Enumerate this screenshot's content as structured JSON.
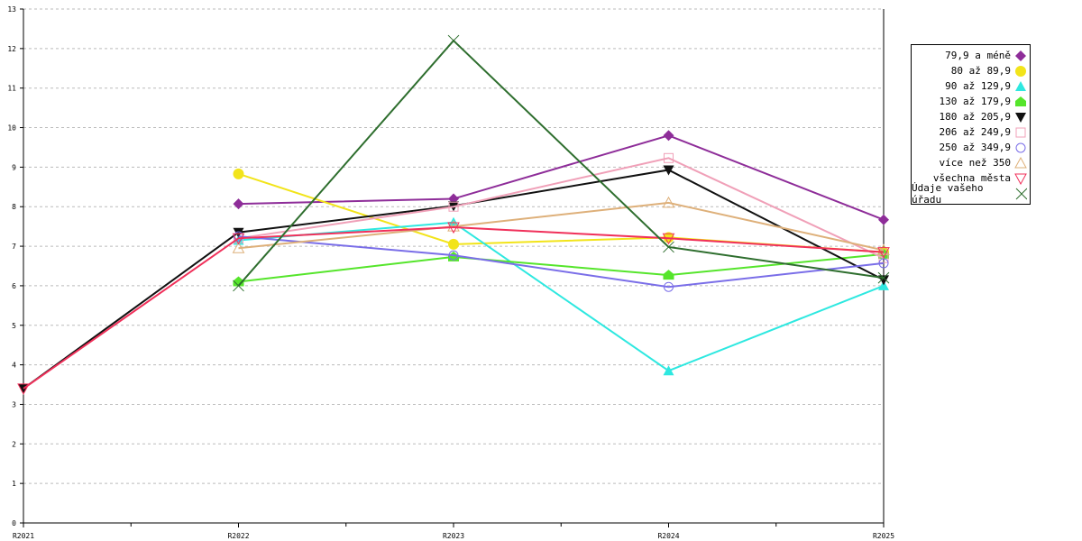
{
  "chart_data": {
    "type": "line",
    "title": "",
    "xlabel": "",
    "ylabel": "",
    "categories": [
      "R2021",
      "R2022",
      "R2023",
      "R2024",
      "R2025"
    ],
    "ylim": [
      0,
      13
    ],
    "yticks": [
      "0",
      "1",
      "2",
      "3",
      "4",
      "5",
      "6",
      "7",
      "8",
      "9",
      "10",
      "11",
      "12",
      "13"
    ],
    "grid": "horizontal dashed",
    "legend_position": "right",
    "series": [
      {
        "name": "79,9 a méně",
        "color": "#8e2d99",
        "marker": "diamond",
        "values": [
          null,
          8.07,
          8.2,
          9.8,
          7.67
        ]
      },
      {
        "name": "80 až 89,9",
        "color": "#f2e41a",
        "marker": "circle",
        "values": [
          null,
          8.83,
          7.05,
          7.22,
          6.85
        ]
      },
      {
        "name": "90 až 129,9",
        "color": "#2ee8e0",
        "marker": "triangle",
        "values": [
          null,
          7.15,
          7.6,
          3.85,
          6.0
        ]
      },
      {
        "name": "130 až 179,9",
        "color": "#55e52b",
        "marker": "pentagon",
        "values": [
          null,
          6.1,
          6.73,
          6.27,
          6.8
        ]
      },
      {
        "name": "180 až 205,9",
        "color": "#111111",
        "marker": "triangle-down",
        "values": [
          3.4,
          7.35,
          8.02,
          8.93,
          6.15
        ]
      },
      {
        "name": "206 až 249,9",
        "color": "#f0a0b8",
        "marker": "square-open",
        "values": [
          null,
          7.2,
          8.0,
          9.23,
          6.7
        ]
      },
      {
        "name": "250 až 349,9",
        "color": "#7a6ee8",
        "marker": "circle-open",
        "values": [
          null,
          7.25,
          6.77,
          5.97,
          6.57
        ]
      },
      {
        "name": "více než 350",
        "color": "#deb07a",
        "marker": "triangle-open",
        "values": [
          null,
          6.95,
          7.5,
          8.1,
          6.9
        ]
      },
      {
        "name": "všechna města",
        "color": "#f0305a",
        "marker": "triangle-down-open",
        "values": [
          3.4,
          7.2,
          7.48,
          7.2,
          6.85
        ]
      },
      {
        "name": "Údaje vašeho úřadu",
        "color": "#2e6e2e",
        "marker": "x",
        "values": [
          null,
          6.0,
          12.2,
          6.98,
          6.2
        ]
      }
    ]
  }
}
